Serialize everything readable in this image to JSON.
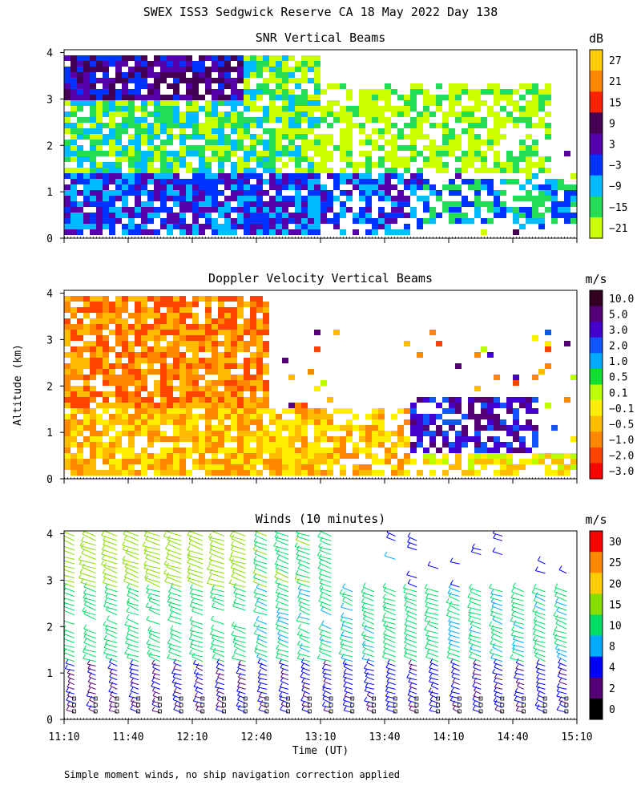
{
  "figure": {
    "title": "SWEX ISS3 Sedgwick Reserve CA  18 May 2022 Day 138",
    "ylabel": "Altitude (km)",
    "xlabel": "Time (UT)",
    "footnote": "Simple moment winds, no ship navigation correction applied",
    "time_ticks": [
      "11:10",
      "11:40",
      "12:10",
      "12:40",
      "13:10",
      "13:40",
      "14:10",
      "14:40",
      "15:10"
    ],
    "altitude_ticks": [
      "0",
      "1",
      "2",
      "3",
      "4"
    ]
  },
  "chart_data": [
    {
      "type": "heatmap",
      "title": "SNR Vertical Beams",
      "colorbar_unit": "dB",
      "colorbar_labels": [
        "27",
        "21",
        "15",
        "9",
        "3",
        "−3",
        "−9",
        "−15",
        "−21"
      ],
      "colorbar_colors": [
        "#ffcc00",
        "#ff8800",
        "#ff2200",
        "#440055",
        "#5500aa",
        "#0033ff",
        "#00bbff",
        "#22dd55",
        "#ccff00"
      ],
      "xlim": [
        "11:10",
        "15:10"
      ],
      "ylim": [
        0,
        4
      ],
      "clusters": [
        {
          "t0": 0.0,
          "t1": 0.7,
          "z0": 0.1,
          "z1": 1.4,
          "value": -3
        },
        {
          "t0": 0.0,
          "t1": 0.5,
          "z0": 1.4,
          "z1": 3.9,
          "value": -12
        },
        {
          "t0": 0.0,
          "t1": 0.35,
          "z0": 2.9,
          "z1": 3.9,
          "value": 3
        },
        {
          "t0": 0.7,
          "t1": 1.0,
          "z0": 0.3,
          "z1": 1.3,
          "value": -6
        },
        {
          "t0": 0.5,
          "t1": 0.95,
          "z0": 1.4,
          "z1": 3.3,
          "value": -18
        }
      ]
    },
    {
      "type": "heatmap",
      "title": "Doppler Velocity Vertical Beams",
      "colorbar_unit": "m/s",
      "colorbar_labels": [
        "10.0",
        "5.0",
        "3.0",
        "2.0",
        "1.0",
        "0.5",
        "0.1",
        "−0.1",
        "−0.5",
        "−1.0",
        "−2.0",
        "−3.0"
      ],
      "colorbar_colors": [
        "#330022",
        "#550077",
        "#4400cc",
        "#1155ff",
        "#00aaff",
        "#11dd33",
        "#bbff00",
        "#ffee00",
        "#ffbb00",
        "#ff8800",
        "#ff4400",
        "#ff0000"
      ],
      "xlim": [
        "11:10",
        "15:10"
      ],
      "ylim": [
        0,
        4
      ],
      "clusters": [
        {
          "t0": 0.0,
          "t1": 0.7,
          "z0": 0.1,
          "z1": 1.5,
          "value": -0.5
        },
        {
          "t0": 0.0,
          "t1": 0.4,
          "z0": 1.5,
          "z1": 3.9,
          "value": -1.0
        },
        {
          "t0": 0.68,
          "t1": 0.92,
          "z0": 0.6,
          "z1": 1.7,
          "value": 3.0
        },
        {
          "t0": 0.7,
          "t1": 1.0,
          "z0": 0.1,
          "z1": 0.6,
          "value": -0.1
        }
      ]
    },
    {
      "type": "scatter",
      "title": "Winds (10 minutes)",
      "colorbar_unit": "m/s",
      "colorbar_labels": [
        "30",
        "25",
        "20",
        "15",
        "10",
        "8",
        "4",
        "2",
        "0"
      ],
      "colorbar_colors": [
        "#ff0000",
        "#ff8800",
        "#ffcc00",
        "#88dd00",
        "#00dd66",
        "#00aaff",
        "#0000ff",
        "#550077",
        "#000000"
      ],
      "xlim": [
        "11:10",
        "15:10"
      ],
      "ylim": [
        0,
        4
      ],
      "profiles_every_minutes": 10,
      "profiles": [
        {
          "time": "11:10",
          "direction_deg": 300,
          "speed_upper": 17,
          "speed_mid": 12,
          "speed_low": 4
        },
        {
          "time": "11:40",
          "direction_deg": 300,
          "speed_upper": 18,
          "speed_mid": 12,
          "speed_low": 4
        },
        {
          "time": "12:10",
          "direction_deg": 300,
          "speed_upper": 17,
          "speed_mid": 12,
          "speed_low": 4
        },
        {
          "time": "12:40",
          "direction_deg": 300,
          "speed_upper": 14,
          "speed_mid": 11,
          "speed_low": 5
        },
        {
          "time": "13:10",
          "direction_deg": 300,
          "speed_upper": 12,
          "speed_mid": 11,
          "speed_low": 5
        },
        {
          "time": "13:40",
          "direction_deg": 300,
          "speed_upper": 8,
          "speed_mid": 12,
          "speed_low": 5
        },
        {
          "time": "14:10",
          "direction_deg": 300,
          "speed_upper": 6,
          "speed_mid": 11,
          "speed_low": 5
        },
        {
          "time": "14:40",
          "direction_deg": 300,
          "speed_upper": 5,
          "speed_mid": 11,
          "speed_low": 5
        }
      ]
    }
  ]
}
